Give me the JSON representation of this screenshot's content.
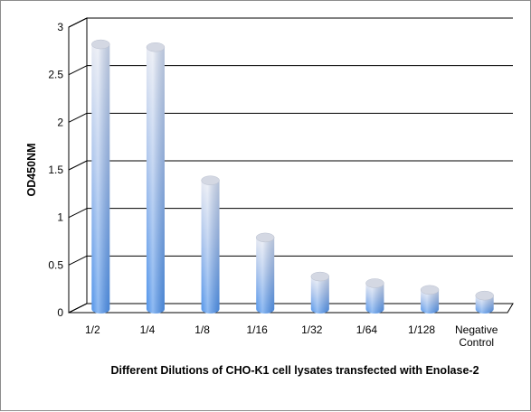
{
  "chart_data": {
    "type": "bar",
    "title": "",
    "xlabel": "Different Dilutions of CHO-K1  cell lysates transfected with Enolase-2",
    "ylabel": "OD450NM",
    "categories": [
      "1/2",
      "1/4",
      "1/8",
      "1/16",
      "1/32",
      "1/64",
      "1/128",
      "Negative Control"
    ],
    "values": [
      2.8,
      2.77,
      1.37,
      0.77,
      0.36,
      0.29,
      0.22,
      0.16
    ],
    "ylim": [
      0,
      3
    ],
    "yticks": [
      "0",
      "0.5",
      "1",
      "1.5",
      "2",
      "2.5",
      "3"
    ],
    "grid": true,
    "legend": "none",
    "colors": {
      "bar_light": "#e6e9f2",
      "bar_mid": "#a9c3ec",
      "bar_dark": "#4f93ea",
      "grid": "#000000",
      "frame": "#8c8c8c"
    }
  }
}
